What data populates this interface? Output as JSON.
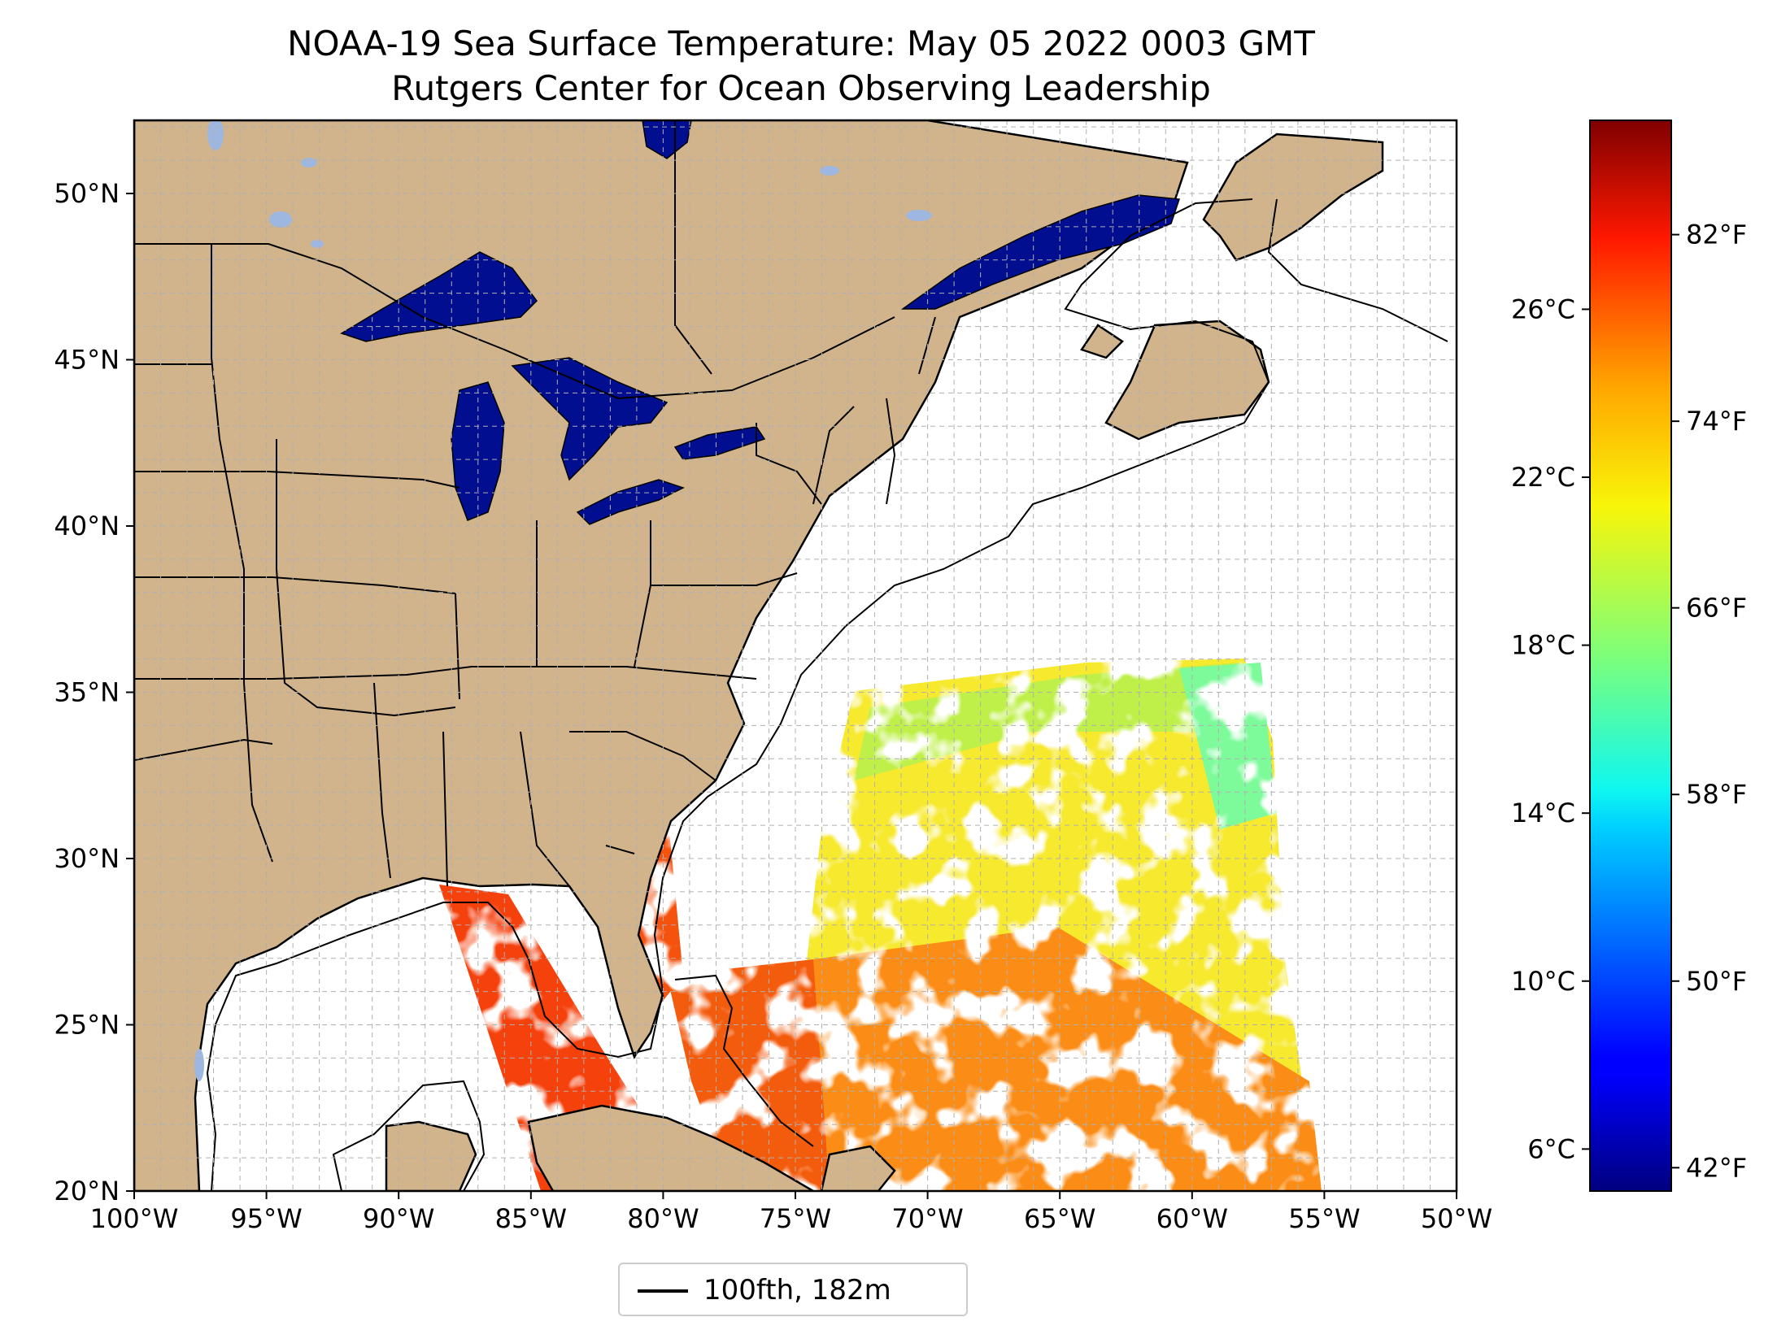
{
  "title": "NOAA-19 Sea Surface Temperature: May 05 2022 0003 GMT",
  "subtitle": "Rutgers Center for Ocean Observing Leadership",
  "map": {
    "projection": "PlateCarree",
    "lon_range": [
      -100,
      -50
    ],
    "lat_range": [
      20,
      52.2
    ],
    "gridlines": true,
    "lon_ticks": [
      {
        "value": -100,
        "label": "100°W"
      },
      {
        "value": -95,
        "label": "95°W"
      },
      {
        "value": -90,
        "label": "90°W"
      },
      {
        "value": -85,
        "label": "85°W"
      },
      {
        "value": -80,
        "label": "80°W"
      },
      {
        "value": -75,
        "label": "75°W"
      },
      {
        "value": -70,
        "label": "70°W"
      },
      {
        "value": -65,
        "label": "65°W"
      },
      {
        "value": -60,
        "label": "60°W"
      },
      {
        "value": -55,
        "label": "55°W"
      },
      {
        "value": -50,
        "label": "50°W"
      }
    ],
    "lat_ticks": [
      {
        "value": 20,
        "label": "20°N"
      },
      {
        "value": 25,
        "label": "25°N"
      },
      {
        "value": 30,
        "label": "30°N"
      },
      {
        "value": 35,
        "label": "35°N"
      },
      {
        "value": 40,
        "label": "40°N"
      },
      {
        "value": 45,
        "label": "45°N"
      },
      {
        "value": 50,
        "label": "50°N"
      }
    ],
    "colors": {
      "land": "#d2b48c",
      "inland_water": "#9db7e0",
      "ocean": "#ffffff",
      "great_lakes": "#000e8f",
      "grid": "#b0b0b0"
    }
  },
  "colorbar": {
    "cmap": "jet",
    "celsius_range": [
      5,
      30.5
    ],
    "celsius_ticks": [
      {
        "value": 6,
        "label": "6°C"
      },
      {
        "value": 10,
        "label": "10°C"
      },
      {
        "value": 14,
        "label": "14°C"
      },
      {
        "value": 18,
        "label": "18°C"
      },
      {
        "value": 22,
        "label": "22°C"
      },
      {
        "value": 26,
        "label": "26°C"
      }
    ],
    "fahrenheit_ticks": [
      {
        "value": 42,
        "label": "42°F"
      },
      {
        "value": 50,
        "label": "50°F"
      },
      {
        "value": 58,
        "label": "58°F"
      },
      {
        "value": 66,
        "label": "66°F"
      },
      {
        "value": 74,
        "label": "74°F"
      },
      {
        "value": 82,
        "label": "82°F"
      }
    ]
  },
  "legend": {
    "label": "100fth, 182m",
    "line_color": "#000000"
  },
  "chart_data": {
    "type": "heatmap",
    "title": "NOAA-19 Sea Surface Temperature: May 05 2022 0003 GMT",
    "subtitle": "Rutgers Center for Ocean Observing Leadership",
    "xlabel": "",
    "ylabel": "",
    "xlim": [
      -100,
      -50
    ],
    "ylim": [
      20,
      52.2
    ],
    "colorscale": "jet",
    "zlim_celsius": [
      5,
      30.5
    ],
    "approximate_regions": [
      {
        "lon_range": [
          -76,
          -57
        ],
        "lat_range": [
          34,
          37.5
        ],
        "temp_c_approx": 18
      },
      {
        "lon_range": [
          -74,
          -56
        ],
        "lat_range": [
          28,
          34
        ],
        "temp_c_approx": 21
      },
      {
        "lon_range": [
          -74,
          -55
        ],
        "lat_range": [
          20,
          28
        ],
        "temp_c_approx": 25
      },
      {
        "lon_range": [
          -88,
          -79
        ],
        "lat_range": [
          20,
          30
        ],
        "temp_c_approx": 27
      },
      {
        "lon_range": [
          -92,
          -60
        ],
        "lat_range": [
          41,
          49
        ],
        "temp_c_approx": 5
      }
    ]
  }
}
